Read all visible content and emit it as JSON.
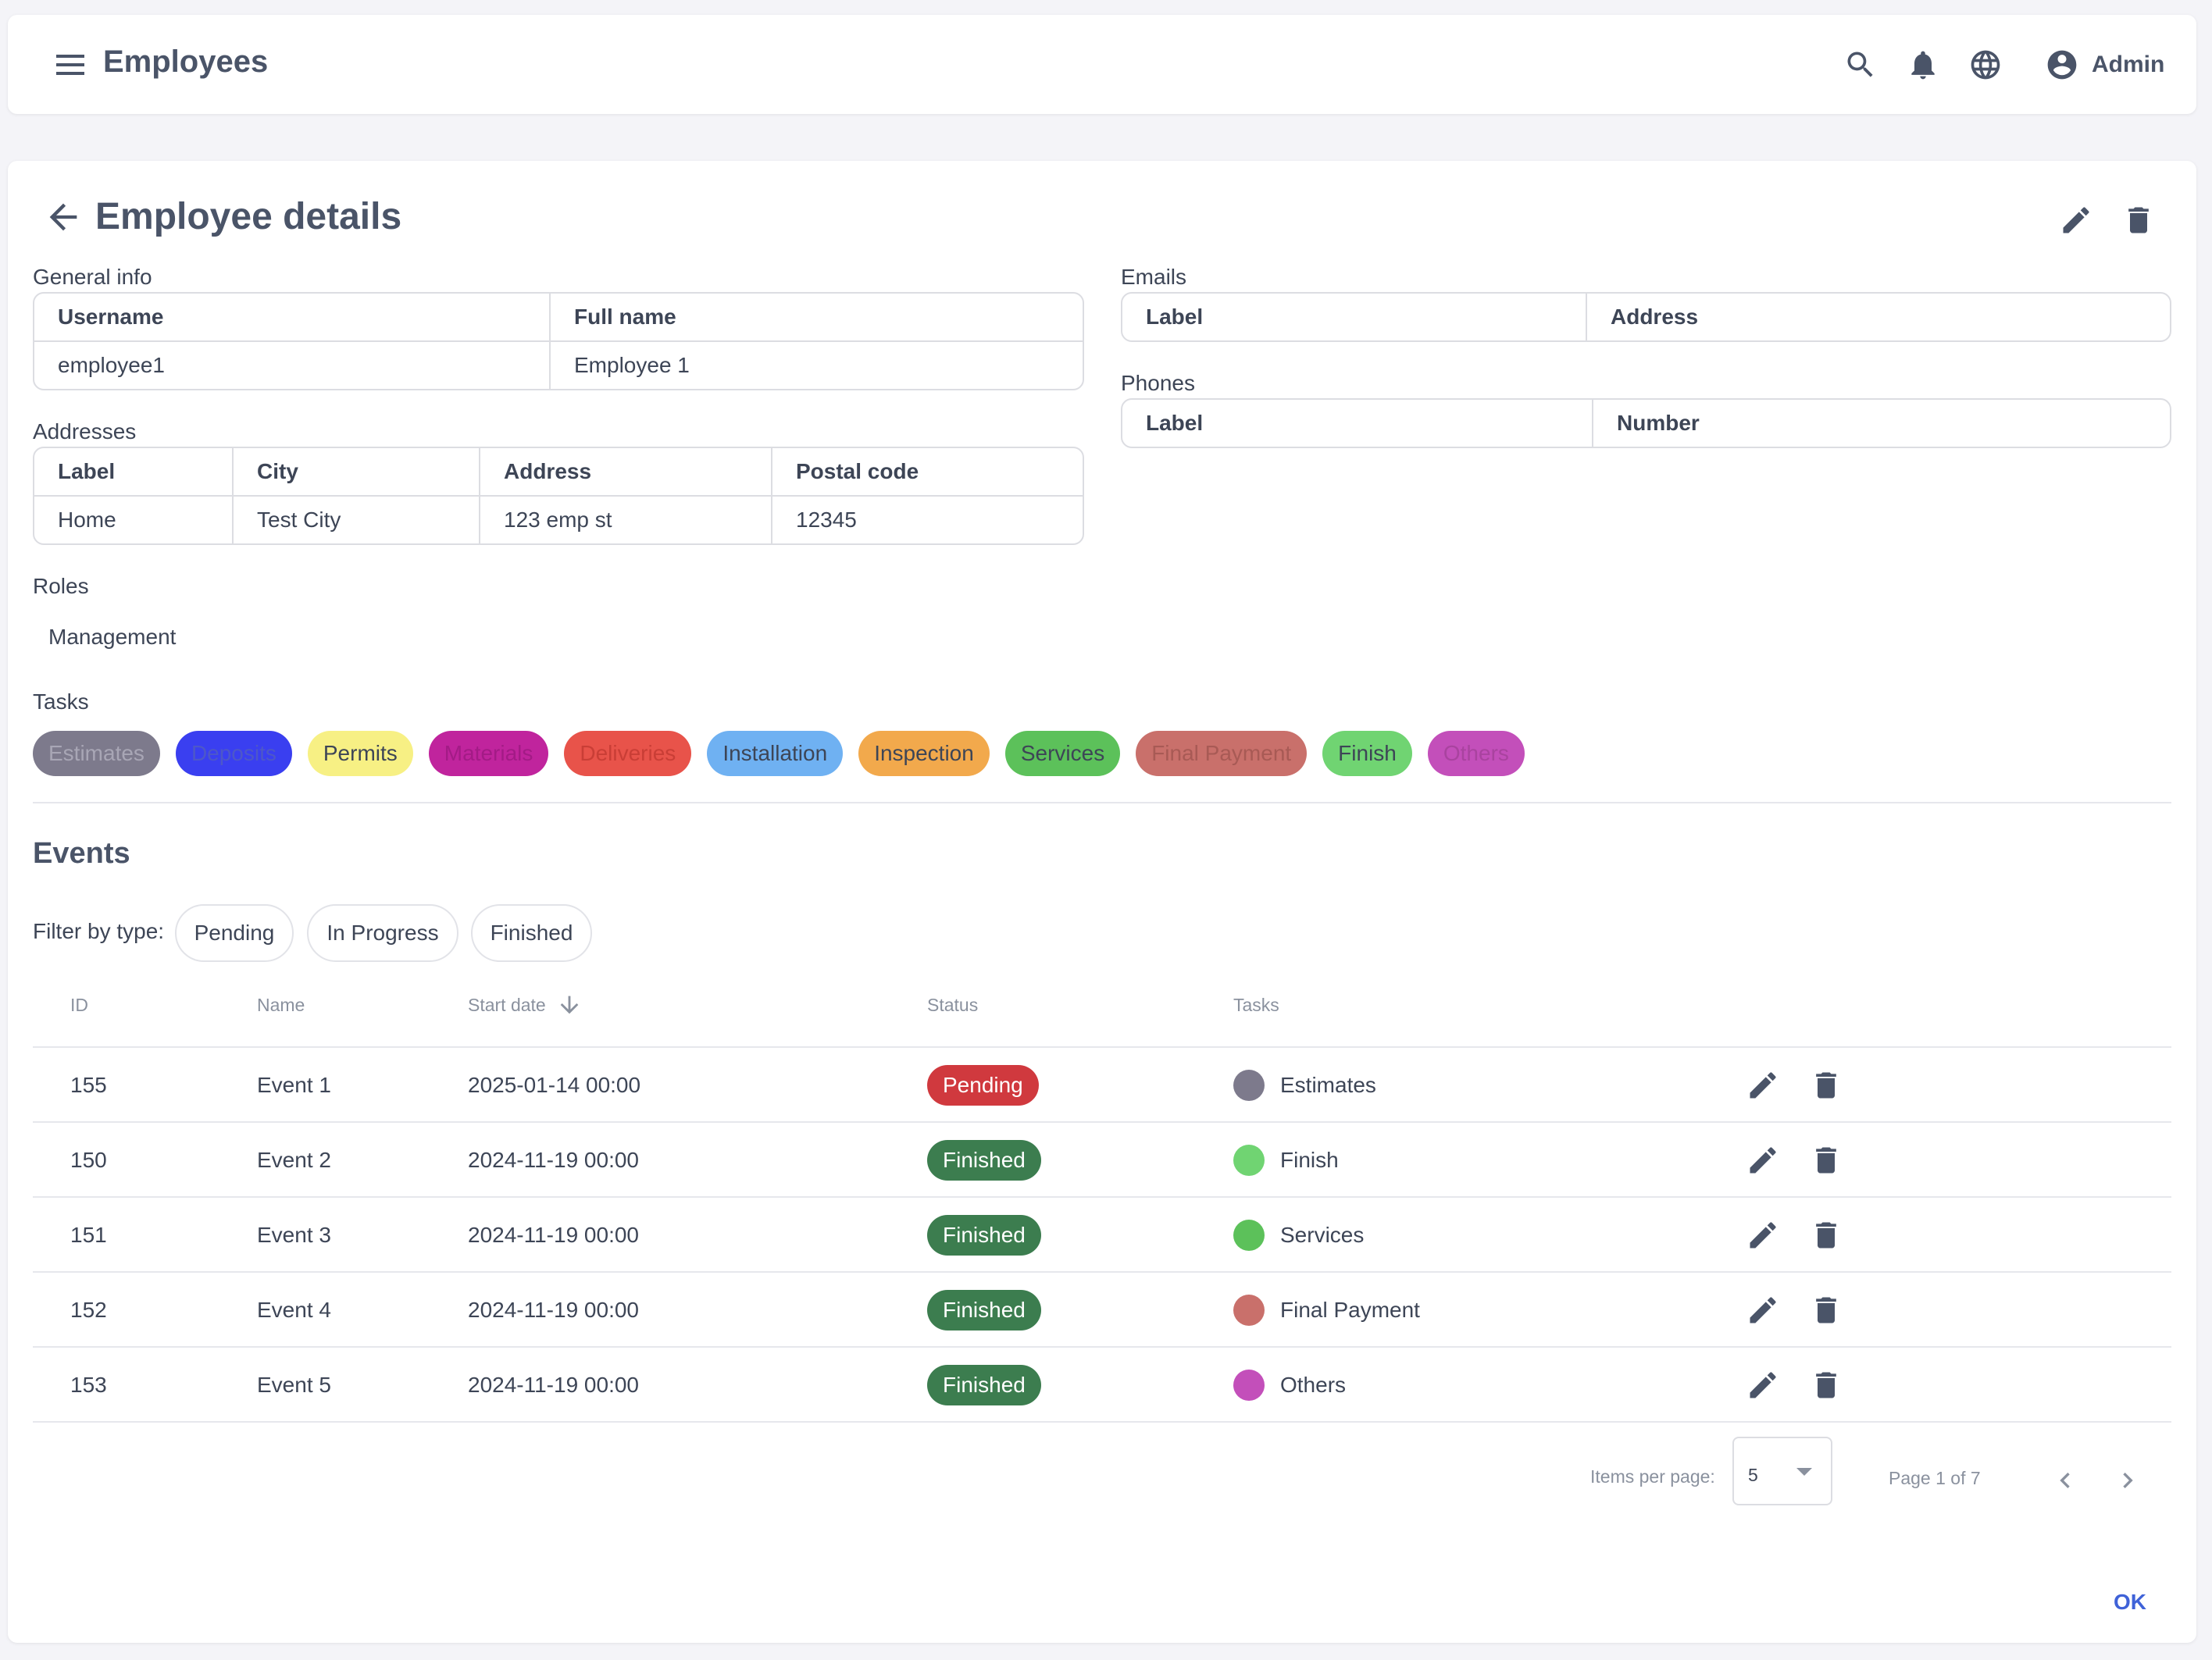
{
  "appbar": {
    "title": "Employees",
    "user_label": "Admin",
    "icons": [
      "menu-icon",
      "search-icon",
      "bell-icon",
      "globe-icon",
      "account-circle-icon"
    ]
  },
  "page": {
    "title": "Employee details",
    "icons": [
      "arrow-back-icon",
      "pencil-icon",
      "trash-icon"
    ]
  },
  "general_info": {
    "label": "General info",
    "headers": [
      "Username",
      "Full name"
    ],
    "row": [
      "employee1",
      "Employee 1"
    ]
  },
  "emails": {
    "label": "Emails",
    "headers": [
      "Label",
      "Address"
    ]
  },
  "phones": {
    "label": "Phones",
    "headers": [
      "Label",
      "Number"
    ]
  },
  "addresses": {
    "label": "Addresses",
    "headers": [
      "Label",
      "City",
      "Address",
      "Postal code"
    ],
    "row": [
      "Home",
      "Test City",
      "123 emp st",
      "12345"
    ]
  },
  "roles": {
    "label": "Roles",
    "value": "Management"
  },
  "tasks": {
    "label": "Tasks",
    "chips": [
      {
        "label": "Estimates",
        "bg": "#7d7a8c",
        "fg": "#a8a6b5"
      },
      {
        "label": "Deposits",
        "bg": "#3a3ff0",
        "fg": "#4d57c9"
      },
      {
        "label": "Permits",
        "bg": "#f7f084",
        "fg": "#3d4556"
      },
      {
        "label": "Materials",
        "bg": "#c0249d",
        "fg": "#a31b86"
      },
      {
        "label": "Deliveries",
        "bg": "#e8534a",
        "fg": "#c93e36"
      },
      {
        "label": "Installation",
        "bg": "#6fb1f2",
        "fg": "#3d4556"
      },
      {
        "label": "Inspection",
        "bg": "#f2a94c",
        "fg": "#3d4556"
      },
      {
        "label": "Services",
        "bg": "#5cc15a",
        "fg": "#3d4556"
      },
      {
        "label": "Final Payment",
        "bg": "#c9706b",
        "fg": "#a85a55"
      },
      {
        "label": "Finish",
        "bg": "#70d472",
        "fg": "#3d4556"
      },
      {
        "label": "Others",
        "bg": "#c34fba",
        "fg": "#a9439f"
      }
    ]
  },
  "events": {
    "title": "Events",
    "filter_label": "Filter by type:",
    "filters": [
      "Pending",
      "In Progress",
      "Finished"
    ],
    "columns": [
      "ID",
      "Name",
      "Start date",
      "Status",
      "Tasks"
    ],
    "sort_icon": "arrow-down-icon",
    "rows": [
      {
        "id": "155",
        "name": "Event 1",
        "start": "2025-01-14 00:00",
        "status": "Pending",
        "status_color": "#d0393e",
        "task": "Estimates",
        "task_color": "#7d7a8c"
      },
      {
        "id": "150",
        "name": "Event 2",
        "start": "2024-11-19 00:00",
        "status": "Finished",
        "status_color": "#3c7d4f",
        "task": "Finish",
        "task_color": "#70d472"
      },
      {
        "id": "151",
        "name": "Event 3",
        "start": "2024-11-19 00:00",
        "status": "Finished",
        "status_color": "#3c7d4f",
        "task": "Services",
        "task_color": "#5cc15a"
      },
      {
        "id": "152",
        "name": "Event 4",
        "start": "2024-11-19 00:00",
        "status": "Finished",
        "status_color": "#3c7d4f",
        "task": "Final Payment",
        "task_color": "#c9706b"
      },
      {
        "id": "153",
        "name": "Event 5",
        "start": "2024-11-19 00:00",
        "status": "Finished",
        "status_color": "#3c7d4f",
        "task": "Others",
        "task_color": "#c34fba"
      }
    ]
  },
  "pagination": {
    "items_per_page_label": "Items per page:",
    "items_per_page": "5",
    "page_info": "Page 1 of 7",
    "icons": [
      "chevron-left-icon",
      "chevron-right-icon"
    ]
  },
  "footer": {
    "ok_label": "OK"
  },
  "colors": {
    "icon": "#4a5468",
    "accent": "#3f62d8"
  }
}
